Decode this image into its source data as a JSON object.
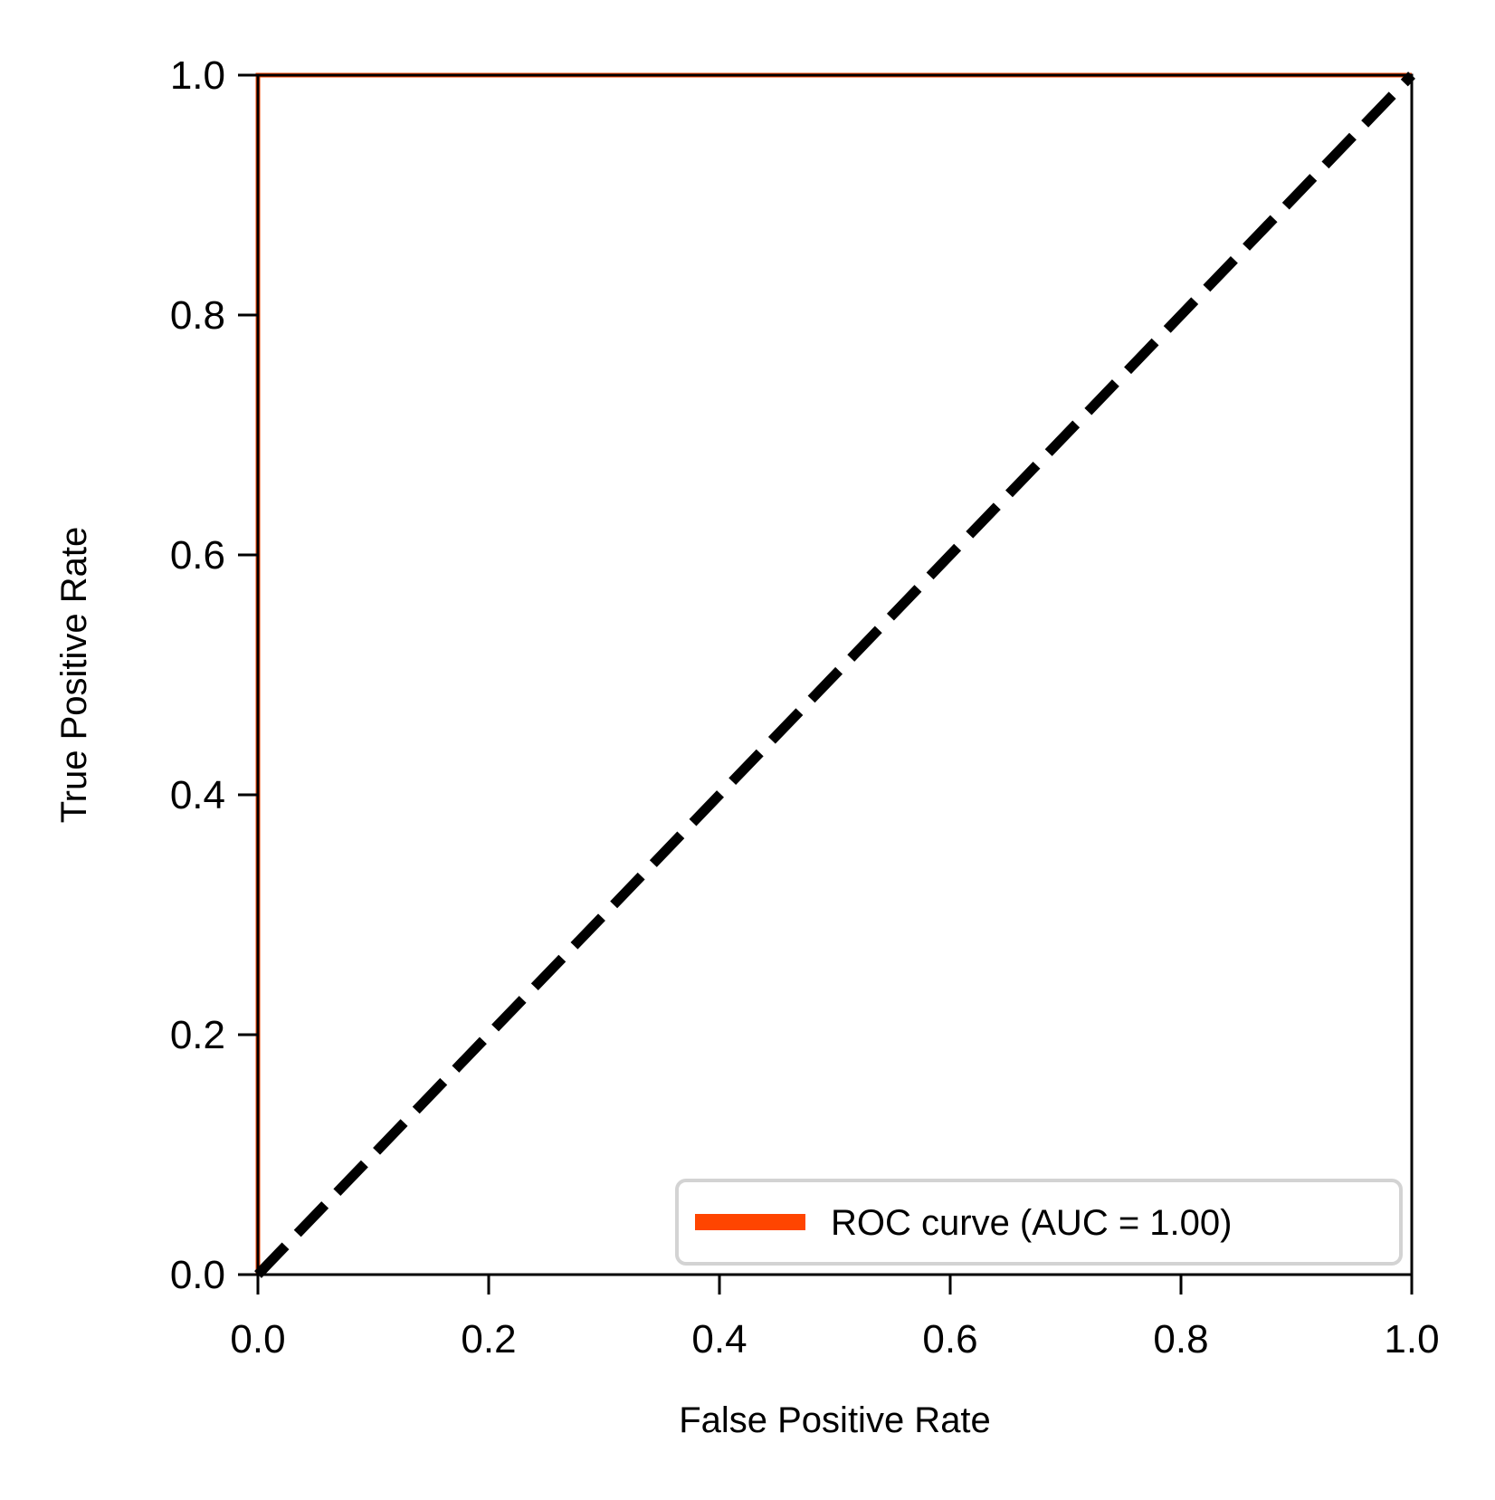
{
  "chart_data": {
    "type": "line",
    "xlabel": "False Positive Rate",
    "ylabel": "True Positive Rate",
    "xlim": [
      0.0,
      1.0
    ],
    "ylim": [
      0.0,
      1.0
    ],
    "xticks": [
      "0.0",
      "0.2",
      "0.4",
      "0.6",
      "0.8",
      "1.0"
    ],
    "yticks": [
      "0.0",
      "0.2",
      "0.4",
      "0.6",
      "0.8",
      "1.0"
    ],
    "xtick_values": [
      0.0,
      0.2,
      0.4,
      0.6,
      0.8,
      1.0
    ],
    "ytick_values": [
      0.0,
      0.2,
      0.4,
      0.6,
      0.8,
      1.0
    ],
    "grid": false,
    "legend_position": "lower-right",
    "series": [
      {
        "name": "ROC curve (AUC = 1.00)",
        "color": "#ff4500",
        "style": "solid",
        "x": [
          0.0,
          0.0,
          1.0
        ],
        "y": [
          0.0,
          1.0,
          1.0
        ]
      },
      {
        "color": "#000000",
        "style": "dashed",
        "x": [
          0.0,
          1.0
        ],
        "y": [
          0.0,
          1.0
        ]
      }
    ]
  }
}
